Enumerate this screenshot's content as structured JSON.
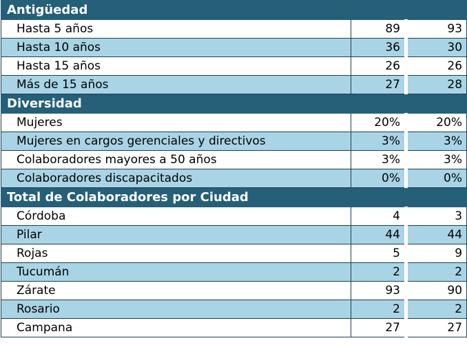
{
  "sections": [
    {
      "title": "Antigüedad",
      "rows": [
        {
          "label": "Hasta 5 años",
          "v1": "89",
          "v2": "93"
        },
        {
          "label": "Hasta 10 años",
          "v1": "36",
          "v2": "30"
        },
        {
          "label": "Hasta 15 años",
          "v1": "26",
          "v2": "26"
        },
        {
          "label": "Más de 15 años",
          "v1": "27",
          "v2": "28"
        }
      ]
    },
    {
      "title": "Diversidad",
      "rows": [
        {
          "label": "Mujeres",
          "v1": "20%",
          "v2": "20%"
        },
        {
          "label": "Mujeres en cargos gerenciales y directivos",
          "v1": "3%",
          "v2": "3%"
        },
        {
          "label": "Colaboradores mayores a 50 años",
          "v1": "3%",
          "v2": "3%"
        },
        {
          "label": "Colaboradores discapacitados",
          "v1": "0%",
          "v2": "0%"
        }
      ]
    },
    {
      "title": "Total de Colaboradores por Ciudad",
      "rows": [
        {
          "label": "Córdoba",
          "v1": "4",
          "v2": "3"
        },
        {
          "label": "Pilar",
          "v1": "44",
          "v2": "44"
        },
        {
          "label": "Rojas",
          "v1": "5",
          "v2": "9"
        },
        {
          "label": "Tucumán",
          "v1": "2",
          "v2": "2"
        },
        {
          "label": "Zárate",
          "v1": "93",
          "v2": "90"
        },
        {
          "label": "Rosario",
          "v1": "2",
          "v2": "2"
        },
        {
          "label": "Campana",
          "v1": "27",
          "v2": "27"
        }
      ]
    }
  ],
  "colors": {
    "header_bg": "#255f78",
    "alt_row_bg": "#a9d4e5",
    "plain_row_bg": "#ffffff"
  }
}
